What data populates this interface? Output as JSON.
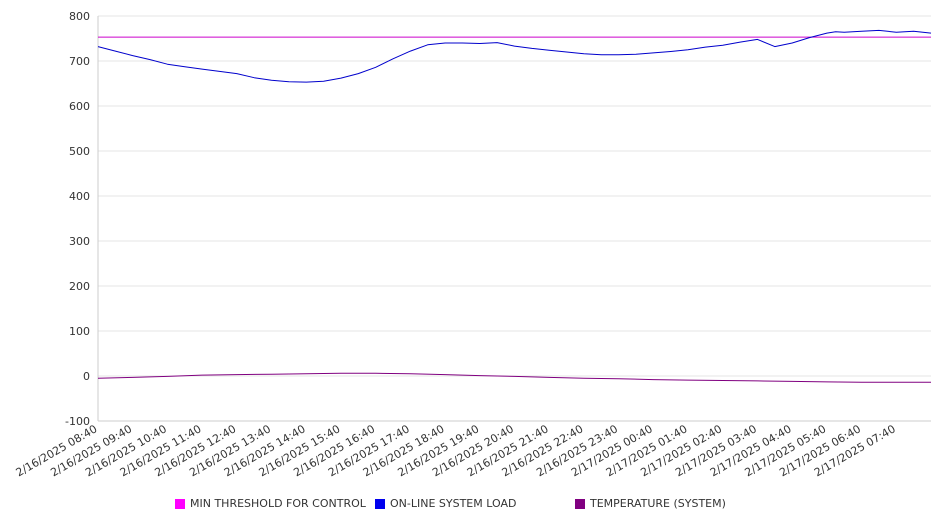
{
  "chart_data": {
    "type": "line",
    "xlabel": "",
    "ylabel": "",
    "ylim": [
      -100,
      800
    ],
    "y_ticks": [
      800,
      700,
      600,
      500,
      400,
      300,
      200,
      100,
      0,
      -100
    ],
    "grid": true,
    "legend_position": "bottom",
    "x_tick_labels": [
      "2/16/2025 08:40",
      "2/16/2025 09:40",
      "2/16/2025 10:40",
      "2/16/2025 11:40",
      "2/16/2025 12:40",
      "2/16/2025 13:40",
      "2/16/2025 14:40",
      "2/16/2025 15:40",
      "2/16/2025 16:40",
      "2/16/2025 17:40",
      "2/16/2025 18:40",
      "2/16/2025 19:40",
      "2/16/2025 20:40",
      "2/16/2025 21:40",
      "2/16/2025 22:40",
      "2/16/2025 23:40",
      "2/17/2025 00:40",
      "2/17/2025 01:40",
      "2/17/2025 02:40",
      "2/17/2025 03:40",
      "2/17/2025 04:40",
      "2/17/2025 05:40",
      "2/17/2025 06:40",
      "2/17/2025 07:40"
    ],
    "x_range_hours": [
      0,
      24
    ],
    "series": [
      {
        "name": "MIN THRESHOLD FOR CONTROL",
        "color": "#cc00cc",
        "x": [
          0,
          24
        ],
        "values": [
          753,
          753
        ]
      },
      {
        "name": "ON-LINE SYSTEM LOAD",
        "color": "#0000cc",
        "x": [
          0,
          0.5,
          1,
          1.5,
          2,
          2.5,
          3,
          3.5,
          4,
          4.5,
          5,
          5.5,
          6,
          6.5,
          7,
          7.5,
          8,
          8.5,
          9,
          9.5,
          10,
          10.5,
          11,
          11.5,
          12,
          12.5,
          13,
          13.5,
          14,
          14.5,
          15,
          15.5,
          16,
          16.5,
          17,
          17.5,
          18,
          18.5,
          19,
          19.5,
          20,
          20.5,
          21,
          21.25,
          21.5,
          22,
          22.5,
          23,
          23.5,
          24
        ],
        "values": [
          732,
          722,
          712,
          703,
          693,
          687,
          682,
          677,
          672,
          663,
          657,
          654,
          653,
          655,
          662,
          672,
          686,
          705,
          722,
          736,
          740,
          740,
          739,
          741,
          733,
          728,
          724,
          720,
          716,
          714,
          714,
          715,
          718,
          721,
          725,
          731,
          735,
          742,
          748,
          732,
          740,
          752,
          762,
          765,
          764,
          766,
          768,
          764,
          766,
          762
        ]
      },
      {
        "name": "TEMPERATURE (SYSTEM)",
        "color": "#800080",
        "x": [
          0,
          1,
          2,
          3,
          4,
          5,
          6,
          7,
          8,
          9,
          10,
          11,
          12,
          13,
          14,
          15,
          16,
          17,
          18,
          19,
          20,
          21,
          22,
          23,
          24
        ],
        "values": [
          -5,
          -3,
          -1,
          2,
          3,
          4,
          5,
          6,
          6,
          5,
          3,
          1,
          -1,
          -3,
          -5,
          -6,
          -8,
          -9,
          -10,
          -11,
          -12,
          -13,
          -14,
          -14,
          -14
        ]
      }
    ]
  }
}
